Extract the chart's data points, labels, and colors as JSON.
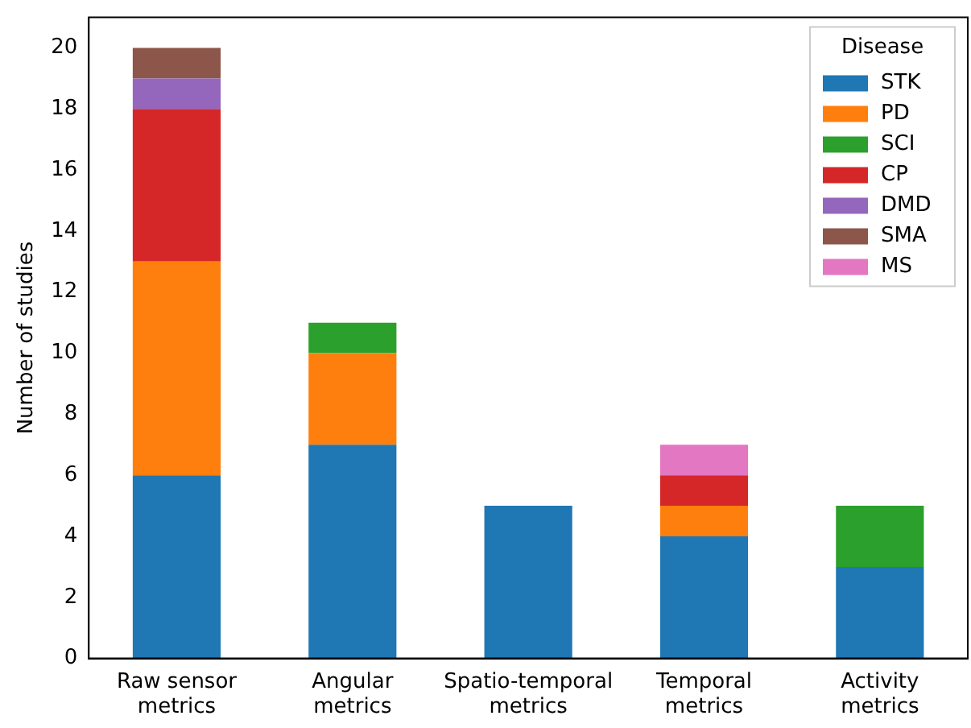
{
  "chart_data": {
    "type": "bar",
    "stacked": true,
    "ylabel": "Number of studies",
    "legend_title": "Disease",
    "legend": "top right",
    "grid": false,
    "categories": [
      "Raw sensor metrics",
      "Angular metrics",
      "Spatio-temporal metrics",
      "Temporal metrics",
      "Activity metrics"
    ],
    "ylim": [
      0,
      21
    ],
    "yticks": [
      0,
      2,
      4,
      6,
      8,
      10,
      12,
      14,
      16,
      18,
      20
    ],
    "series": [
      {
        "name": "STK",
        "color": "#1f77b4",
        "values": [
          6,
          7,
          5,
          4,
          3
        ]
      },
      {
        "name": "PD",
        "color": "#ff7f0e",
        "values": [
          7,
          3,
          0,
          1,
          0
        ]
      },
      {
        "name": "SCI",
        "color": "#2ca02c",
        "values": [
          0,
          1,
          0,
          0,
          2
        ]
      },
      {
        "name": "CP",
        "color": "#d62728",
        "values": [
          5,
          0,
          0,
          1,
          0
        ]
      },
      {
        "name": "DMD",
        "color": "#9467bd",
        "values": [
          1,
          0,
          0,
          0,
          0
        ]
      },
      {
        "name": "SMA",
        "color": "#8c564b",
        "values": [
          1,
          0,
          0,
          0,
          0
        ]
      },
      {
        "name": "MS",
        "color": "#e377c2",
        "values": [
          0,
          0,
          0,
          1,
          0
        ]
      }
    ]
  }
}
